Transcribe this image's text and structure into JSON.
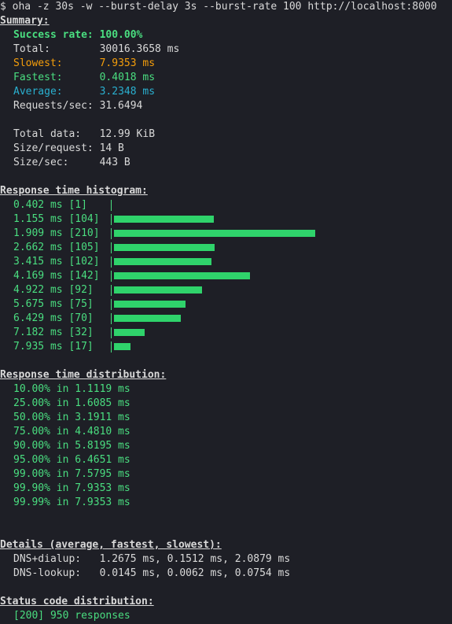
{
  "command": "$ oha -z 30s -w --burst-delay 3s --burst-rate 100 http://localhost:8000",
  "summary": {
    "heading": "Summary:",
    "rows": [
      {
        "label": "Success rate:",
        "value": "100.00%",
        "style": "green bold"
      },
      {
        "label": "Total:",
        "value": "30016.3658 ms",
        "style": ""
      },
      {
        "label": "Slowest:",
        "value": "7.9353 ms",
        "style": "orange"
      },
      {
        "label": "Fastest:",
        "value": "0.4018 ms",
        "style": "green"
      },
      {
        "label": "Average:",
        "value": "3.2348 ms",
        "style": "cyan"
      },
      {
        "label": "Requests/sec:",
        "value": "31.6494",
        "style": ""
      }
    ],
    "data_rows": [
      {
        "label": "Total data:",
        "value": "12.99 KiB"
      },
      {
        "label": "Size/request:",
        "value": "14 B"
      },
      {
        "label": "Size/sec:",
        "value": "443 B"
      }
    ]
  },
  "histogram": {
    "heading": "Response time histogram:",
    "rows": [
      {
        "label": "0.402 ms [1]",
        "count": 1
      },
      {
        "label": "1.155 ms [104]",
        "count": 104
      },
      {
        "label": "1.909 ms [210]",
        "count": 210
      },
      {
        "label": "2.662 ms [105]",
        "count": 105
      },
      {
        "label": "3.415 ms [102]",
        "count": 102
      },
      {
        "label": "4.169 ms [142]",
        "count": 142
      },
      {
        "label": "4.922 ms [92]",
        "count": 92
      },
      {
        "label": "5.675 ms [75]",
        "count": 75
      },
      {
        "label": "6.429 ms [70]",
        "count": 70
      },
      {
        "label": "7.182 ms [32]",
        "count": 32
      },
      {
        "label": "7.935 ms [17]",
        "count": 17
      }
    ]
  },
  "distribution": {
    "heading": "Response time distribution:",
    "rows": [
      "10.00% in 1.1119 ms",
      "25.00% in 1.6085 ms",
      "50.00% in 3.1911 ms",
      "75.00% in 4.4810 ms",
      "90.00% in 5.8195 ms",
      "95.00% in 6.4651 ms",
      "99.00% in 7.5795 ms",
      "99.90% in 7.9353 ms",
      "99.99% in 7.9353 ms"
    ]
  },
  "details": {
    "heading": "Details (average, fastest, slowest):",
    "rows": [
      {
        "label": "DNS+dialup:",
        "value": "1.2675 ms, 0.1512 ms, 2.0879 ms"
      },
      {
        "label": "DNS-lookup:",
        "value": "0.0145 ms, 0.0062 ms, 0.0754 ms"
      }
    ]
  },
  "status": {
    "heading": "Status code distribution:",
    "rows": [
      "[200] 950 responses"
    ]
  },
  "colors": {
    "background": "#1e1f26",
    "text": "#d9d9d9",
    "green": "#4ade80",
    "orange": "#f59e0b",
    "cyan": "#2ab0d0"
  }
}
